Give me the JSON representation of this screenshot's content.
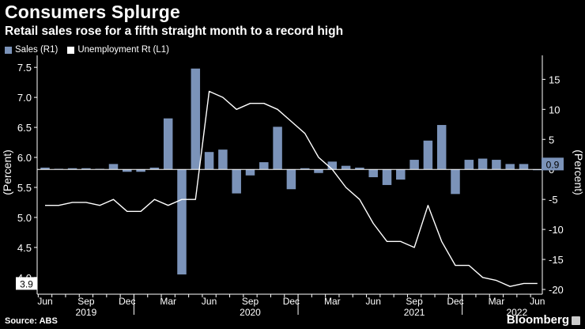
{
  "header": {
    "title": "Consumers Splurge",
    "subtitle": "Retail sales rose for a fifth straight month to a record high"
  },
  "footer": {
    "source": "Source: ABS",
    "brand": "Bloomberg"
  },
  "colors": {
    "background": "#000000",
    "bars": "#7b93b9",
    "line": "#ffffff",
    "axis": "#ffffff"
  },
  "chart_data": {
    "type": "bar+line",
    "title": "Consumers Splurge",
    "subtitle": "Retail sales rose for a fifth straight month to a record high",
    "left_axis": {
      "label": "(Percent)",
      "range": [
        3.8,
        7.7
      ],
      "ticks": [
        "4.0",
        "4.5",
        "5.0",
        "5.5",
        "6.0",
        "6.5",
        "7.0",
        "7.5"
      ],
      "tick_values": [
        4.0,
        4.5,
        5.0,
        5.5,
        6.0,
        6.5,
        7.0,
        7.5
      ]
    },
    "right_axis": {
      "label": "(Percent)",
      "range": [
        -20,
        19
      ],
      "ticks": [
        "-20",
        "-15",
        "-10",
        "-5",
        "0",
        "5",
        "10",
        "15"
      ],
      "tick_values": [
        -20,
        -15,
        -10,
        -5,
        0,
        5,
        10,
        15
      ]
    },
    "x_axis": {
      "month_ticks": [
        "Jun",
        "Sep",
        "Dec",
        "Mar",
        "Jun",
        "Sep",
        "Dec",
        "Mar",
        "Jun",
        "Sep",
        "Dec",
        "Mar",
        "Jun"
      ],
      "month_tick_index": [
        0,
        3,
        6,
        9,
        12,
        15,
        18,
        21,
        24,
        27,
        30,
        33,
        36
      ],
      "years": [
        "2019",
        "2020",
        "2021",
        "2022"
      ],
      "year_center_index": [
        3,
        15,
        27,
        34.5
      ]
    },
    "months": [
      "2019-06",
      "2019-07",
      "2019-08",
      "2019-09",
      "2019-10",
      "2019-11",
      "2019-12",
      "2020-01",
      "2020-02",
      "2020-03",
      "2020-04",
      "2020-05",
      "2020-06",
      "2020-07",
      "2020-08",
      "2020-09",
      "2020-10",
      "2020-11",
      "2020-12",
      "2021-01",
      "2021-02",
      "2021-03",
      "2021-04",
      "2021-05",
      "2021-06",
      "2021-07",
      "2021-08",
      "2021-09",
      "2021-10",
      "2021-11",
      "2021-12",
      "2022-01",
      "2022-02",
      "2022-03",
      "2022-04",
      "2022-05",
      "2022-06"
    ],
    "series": [
      {
        "name": "Sales (R1)",
        "axis": "right",
        "type": "bar",
        "values": [
          0.3,
          0.1,
          0.2,
          0.2,
          0.1,
          0.9,
          -0.4,
          -0.4,
          0.3,
          8.5,
          -17.5,
          16.8,
          2.9,
          3.3,
          -4.0,
          -1.0,
          1.2,
          7.1,
          -3.3,
          0.2,
          -0.6,
          1.3,
          0.6,
          0.3,
          -1.3,
          -2.6,
          -1.7,
          1.6,
          4.8,
          7.4,
          -4.1,
          1.6,
          1.8,
          1.6,
          0.9,
          0.9,
          0.0
        ]
      },
      {
        "name": "Unemployment Rt (L1)",
        "axis": "left",
        "type": "line",
        "values": [
          5.2,
          5.2,
          5.25,
          5.25,
          5.2,
          5.3,
          5.1,
          5.1,
          5.3,
          5.2,
          5.3,
          5.3,
          7.1,
          7.0,
          6.8,
          6.9,
          6.9,
          6.8,
          6.6,
          6.4,
          6.0,
          5.8,
          5.5,
          5.3,
          4.9,
          4.6,
          4.6,
          4.5,
          5.2,
          4.6,
          4.2,
          4.2,
          4.0,
          3.95,
          3.85,
          3.9,
          3.9
        ]
      }
    ],
    "last_value_labels": {
      "left": "3.9",
      "right": "0.9"
    }
  }
}
